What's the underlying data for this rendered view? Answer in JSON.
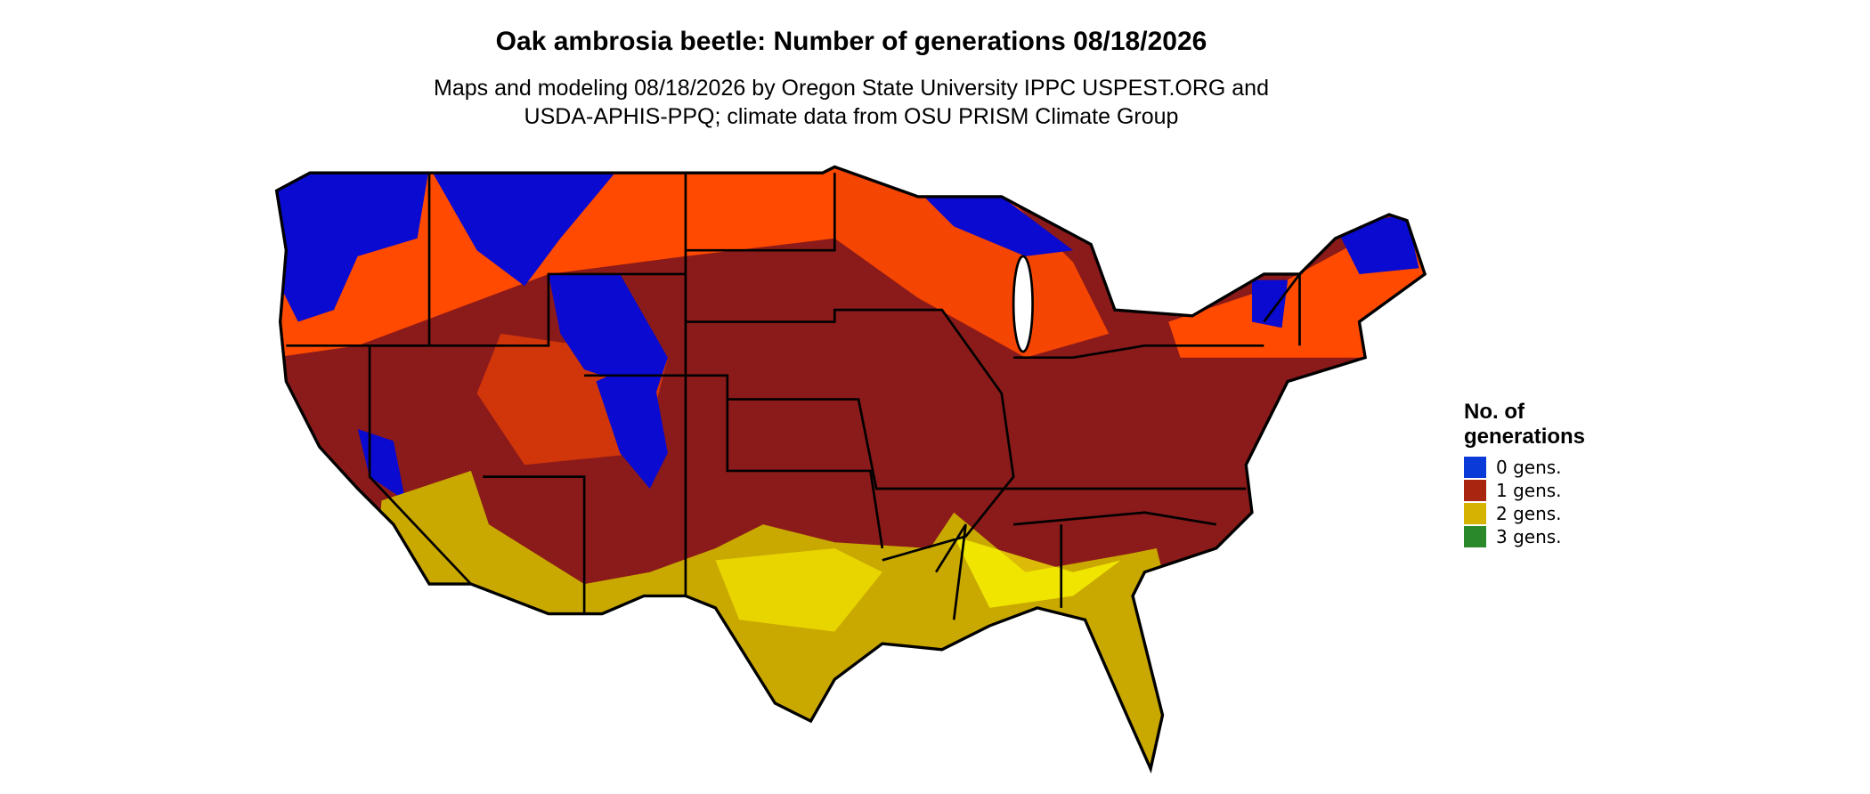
{
  "header": {
    "title": "Oak ambrosia beetle: Number of generations 08/18/2026",
    "subtitle_lines": [
      "Maps and modeling 08/18/2026 by Oregon State University IPPC USPEST.ORG and",
      "USDA-APHIS-PPQ; climate data from OSU PRISM Climate Group"
    ]
  },
  "legend": {
    "title_lines": [
      "No. of",
      "generations"
    ],
    "items": [
      {
        "label": "0 gens.",
        "color": "#0a3ad8"
      },
      {
        "label": "1 gens.",
        "color": "#a8260f"
      },
      {
        "label": "2 gens.",
        "color": "#d4b400"
      },
      {
        "label": "3 gens.",
        "color": "#2a8a2a"
      }
    ]
  }
}
